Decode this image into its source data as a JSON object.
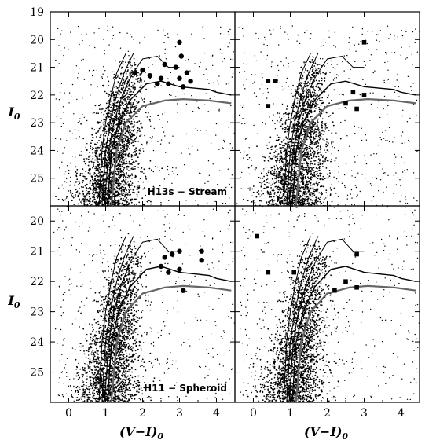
{
  "chart_data": {
    "type": "scatter",
    "xlabel_main": "(V−I)",
    "xlabel_sub": "0",
    "ylabel_main": "I",
    "ylabel_sub": "0",
    "xlim": [
      -0.5,
      4.5
    ],
    "ylim": [
      26,
      19
    ],
    "x_ticks": [
      0,
      1,
      2,
      3,
      4
    ],
    "y_ticks_top_row": [
      20,
      21,
      22,
      23,
      24,
      25
    ],
    "y_tick_extra_top": 19,
    "y_ticks_bottom_row": [
      20,
      21,
      22,
      23,
      24,
      25
    ],
    "legend": "none",
    "panels": [
      {
        "label": "H13s − Stream",
        "row": 0,
        "col": 0,
        "highlight": "filled-circles",
        "highlight_points": [
          [
            3.0,
            20.1
          ],
          [
            3.05,
            20.6
          ],
          [
            2.6,
            20.9
          ],
          [
            2.9,
            21.0
          ],
          [
            3.2,
            21.2
          ],
          [
            3.0,
            21.4
          ],
          [
            3.3,
            21.5
          ],
          [
            2.5,
            21.4
          ],
          [
            2.7,
            21.6
          ],
          [
            3.1,
            21.7
          ],
          [
            2.2,
            21.3
          ],
          [
            2.4,
            21.6
          ],
          [
            2.0,
            21.1
          ],
          [
            1.8,
            21.2
          ]
        ]
      },
      {
        "label": "",
        "row": 0,
        "col": 1,
        "highlight": "squares-and-open-circles",
        "highlight_points": [
          [
            3.0,
            20.1
          ],
          [
            0.4,
            21.5
          ],
          [
            0.6,
            21.5
          ],
          [
            0.4,
            22.4
          ],
          [
            2.5,
            22.3
          ],
          [
            3.0,
            22.0
          ],
          [
            2.7,
            21.9
          ],
          [
            2.8,
            22.5
          ]
        ]
      },
      {
        "label": "H11 − Spheroid",
        "row": 1,
        "col": 0,
        "highlight": "filled-circles",
        "highlight_points": [
          [
            3.0,
            21.0
          ],
          [
            3.6,
            21.0
          ],
          [
            3.6,
            21.3
          ],
          [
            2.8,
            21.1
          ],
          [
            3.0,
            21.6
          ],
          [
            2.7,
            21.7
          ],
          [
            3.1,
            22.3
          ],
          [
            2.5,
            21.5
          ],
          [
            2.6,
            21.2
          ]
        ]
      },
      {
        "label": "",
        "row": 1,
        "col": 1,
        "highlight": "squares-and-open-circles",
        "highlight_points": [
          [
            0.4,
            21.7
          ],
          [
            1.1,
            21.7
          ],
          [
            2.8,
            21.1
          ],
          [
            2.5,
            22.0
          ],
          [
            2.2,
            22.3
          ],
          [
            2.8,
            22.2
          ],
          [
            0.1,
            20.5
          ]
        ]
      }
    ],
    "isochrones": {
      "note": "fiducial RGB tracks",
      "tracks": [
        [
          [
            0.82,
            26.0
          ],
          [
            0.9,
            24.0
          ],
          [
            1.0,
            23.0
          ],
          [
            1.15,
            22.0
          ],
          [
            1.3,
            21.2
          ],
          [
            1.55,
            20.5
          ]
        ],
        [
          [
            0.9,
            26.0
          ],
          [
            1.0,
            24.0
          ],
          [
            1.12,
            23.0
          ],
          [
            1.3,
            22.0
          ],
          [
            1.5,
            21.2
          ],
          [
            1.75,
            20.5
          ]
        ],
        [
          [
            0.97,
            26.0
          ],
          [
            1.08,
            24.0
          ],
          [
            1.22,
            23.0
          ],
          [
            1.45,
            22.0
          ],
          [
            1.7,
            21.3
          ],
          [
            2.0,
            20.7
          ],
          [
            2.4,
            20.6
          ],
          [
            2.7,
            21.0
          ],
          [
            3.0,
            21.0
          ]
        ],
        [
          [
            1.05,
            26.0
          ],
          [
            1.16,
            24.0
          ],
          [
            1.35,
            23.0
          ],
          [
            1.65,
            22.2
          ],
          [
            2.1,
            21.6
          ],
          [
            2.5,
            21.5
          ],
          [
            3.0,
            21.7
          ],
          [
            3.8,
            21.8
          ],
          [
            4.0,
            21.9
          ],
          [
            4.4,
            22.0
          ]
        ],
        [
          [
            1.15,
            26.0
          ],
          [
            1.3,
            24.0
          ],
          [
            1.55,
            23.0
          ],
          [
            2.0,
            22.4
          ],
          [
            2.6,
            22.2
          ],
          [
            3.1,
            22.15
          ],
          [
            3.8,
            22.2
          ],
          [
            4.4,
            22.3
          ]
        ]
      ]
    }
  }
}
